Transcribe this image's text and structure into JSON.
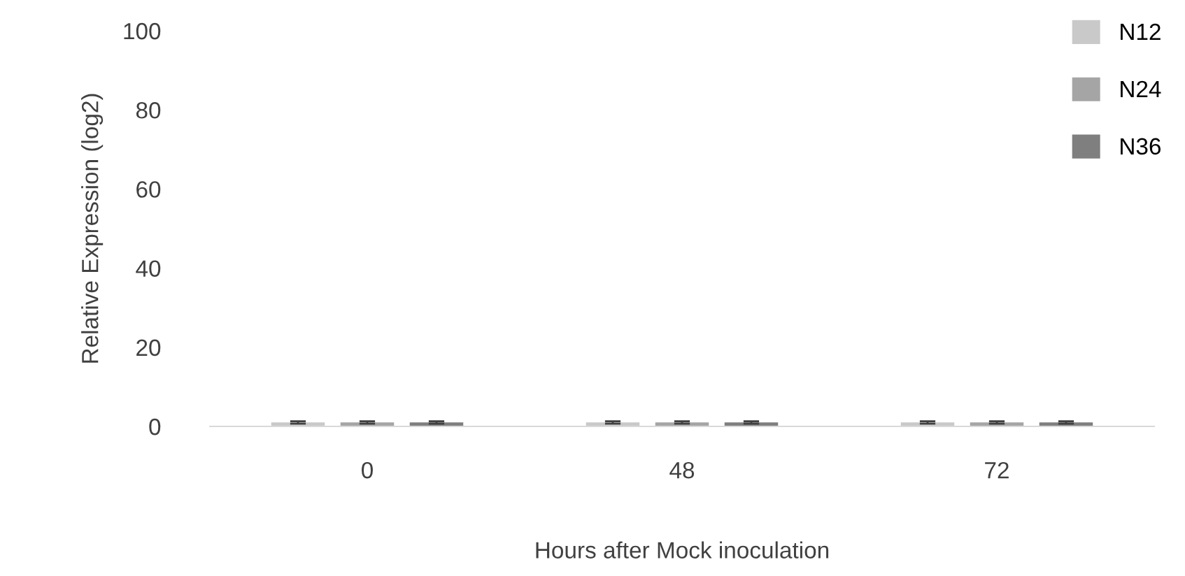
{
  "chart_data": {
    "type": "bar",
    "xlabel": "Hours after Mock inoculation",
    "ylabel": "Relative Expression (log2)",
    "categories": [
      "0",
      "48",
      "72"
    ],
    "series": [
      {
        "name": "N12",
        "color": "#c9c9c9",
        "values": [
          1,
          1,
          1
        ],
        "errors": [
          0.3,
          0.3,
          0.3
        ]
      },
      {
        "name": "N24",
        "color": "#a5a5a5",
        "values": [
          1,
          1,
          1
        ],
        "errors": [
          0.3,
          0.3,
          0.3
        ]
      },
      {
        "name": "N36",
        "color": "#7f7f7f",
        "values": [
          1,
          1,
          1
        ],
        "errors": [
          0.3,
          0.3,
          0.3
        ]
      }
    ],
    "ylim": [
      0,
      100
    ],
    "yticks": [
      0,
      20,
      40,
      60,
      80,
      100
    ],
    "grid": false,
    "legend": "top right"
  }
}
